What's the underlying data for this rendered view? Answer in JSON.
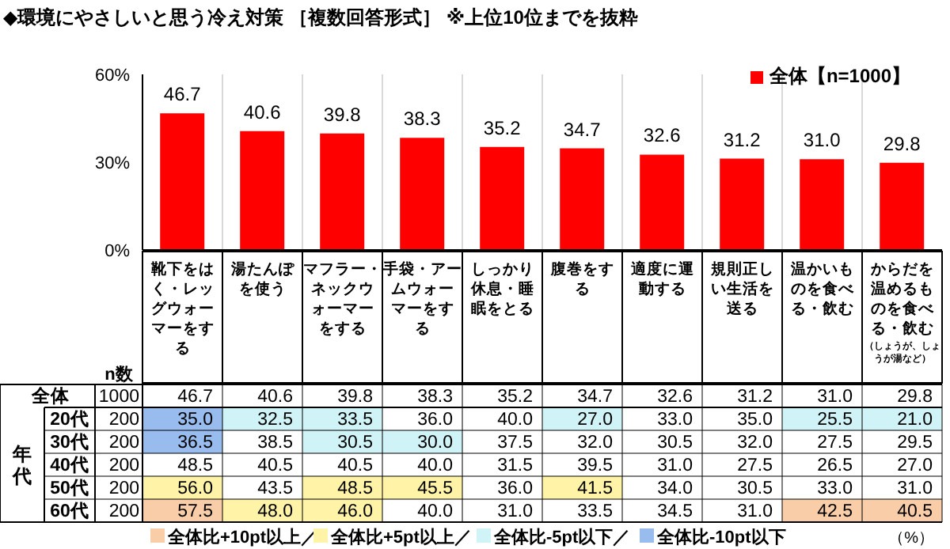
{
  "chart_data": [
    {
      "type": "bar",
      "title": "◆環境にやさしいと思う冷え対策 ［複数回答形式］ ※上位10位までを抜粋",
      "categories": [
        "靴下をはく・レッグウォーマーをする",
        "湯たんぽを使う",
        "マフラー・ネックウォーマーをする",
        "手袋・アームウォーマーをする",
        "しっかり休息・睡眠をとる",
        "腹巻をする",
        "適度に運動する",
        "規則正しい生活を送る",
        "温かいものを食べる・飲む",
        "からだを温めるものを食べる・飲む（しょうが、しょうが湯など）"
      ],
      "series": [
        {
          "name": "全体【n=1000】",
          "color": "#ff0000",
          "values": [
            46.7,
            40.6,
            39.8,
            38.3,
            35.2,
            34.7,
            32.6,
            31.2,
            31.0,
            29.8
          ],
          "value_labels": [
            "46.7",
            "40.6",
            "39.8",
            "38.3",
            "35.2",
            "34.7",
            "32.6",
            "31.2",
            "31.0",
            "29.8"
          ]
        }
      ],
      "ylim": [
        0,
        60
      ],
      "yticks": [
        {
          "value": 0,
          "label": "0%"
        },
        {
          "value": 30,
          "label": "30%"
        },
        {
          "value": 60,
          "label": "60%"
        }
      ],
      "grid": "x",
      "legend": "top right"
    },
    {
      "type": "heatmap",
      "categories": [
        "n数",
        null,
        null,
        null,
        null,
        null,
        null,
        null,
        null,
        null,
        null
      ],
      "y_categories": [
        "全体",
        "20代",
        "30代",
        "40代",
        "50代",
        "60代"
      ],
      "ylabel": "年代",
      "cells": [
        [
          1000,
          46.7,
          40.6,
          39.8,
          38.3,
          35.2,
          34.7,
          32.6,
          31.2,
          31.0,
          29.8
        ],
        [
          200,
          35.0,
          32.5,
          33.5,
          36.0,
          40.0,
          27.0,
          33.0,
          35.0,
          25.5,
          21.0
        ],
        [
          200,
          36.5,
          38.5,
          30.5,
          30.0,
          37.5,
          32.0,
          30.5,
          32.0,
          27.5,
          29.5
        ],
        [
          200,
          48.5,
          40.5,
          40.5,
          40.0,
          31.5,
          39.5,
          31.0,
          27.5,
          26.5,
          27.0
        ],
        [
          200,
          56.0,
          43.5,
          48.5,
          45.5,
          36.0,
          41.5,
          34.0,
          30.5,
          33.0,
          31.0
        ],
        [
          200,
          57.5,
          48.0,
          46.0,
          40.0,
          31.0,
          33.5,
          34.5,
          31.0,
          42.5,
          40.5
        ]
      ],
      "cell_labels": [
        [
          "1000",
          "46.7",
          "40.6",
          "39.8",
          "38.3",
          "35.2",
          "34.7",
          "32.6",
          "31.2",
          "31.0",
          "29.8"
        ],
        [
          "200",
          "35.0",
          "32.5",
          "33.5",
          "36.0",
          "40.0",
          "27.0",
          "33.0",
          "35.0",
          "25.5",
          "21.0"
        ],
        [
          "200",
          "36.5",
          "38.5",
          "30.5",
          "30.0",
          "37.5",
          "32.0",
          "30.5",
          "32.0",
          "27.5",
          "29.5"
        ],
        [
          "200",
          "48.5",
          "40.5",
          "40.5",
          "40.0",
          "31.5",
          "39.5",
          "31.0",
          "27.5",
          "26.5",
          "27.0"
        ],
        [
          "200",
          "56.0",
          "43.5",
          "48.5",
          "45.5",
          "36.0",
          "41.5",
          "34.0",
          "30.5",
          "33.0",
          "31.0"
        ],
        [
          "200",
          "57.5",
          "48.0",
          "46.0",
          "40.0",
          "31.0",
          "33.5",
          "34.5",
          "31.0",
          "42.5",
          "40.5"
        ]
      ],
      "colors": [
        [
          null,
          null,
          null,
          null,
          null,
          null,
          null,
          null,
          null,
          null,
          null
        ],
        [
          null,
          "#99bcef",
          "#cff3f7",
          "#cff3f7",
          null,
          null,
          "#cff3f7",
          null,
          null,
          "#cff3f7",
          "#cff3f7"
        ],
        [
          null,
          "#99bcef",
          null,
          "#cff3f7",
          "#cff3f7",
          null,
          null,
          null,
          null,
          null,
          null
        ],
        [
          null,
          null,
          null,
          null,
          null,
          null,
          null,
          null,
          null,
          null,
          null
        ],
        [
          null,
          "#fff3a8",
          null,
          "#fff3a8",
          "#fff3a8",
          null,
          "#fff3a8",
          null,
          null,
          null,
          null
        ],
        [
          null,
          "#f9cda8",
          "#fff3a8",
          "#fff3a8",
          null,
          null,
          null,
          null,
          null,
          "#f9cda8",
          "#f9cda8"
        ]
      ],
      "annotations": [
        "全体比+10pt以上／",
        "全体比+5pt以上／",
        "全体比-5pt以下／",
        "全体比-10pt以下",
        "（%）"
      ]
    }
  ]
}
